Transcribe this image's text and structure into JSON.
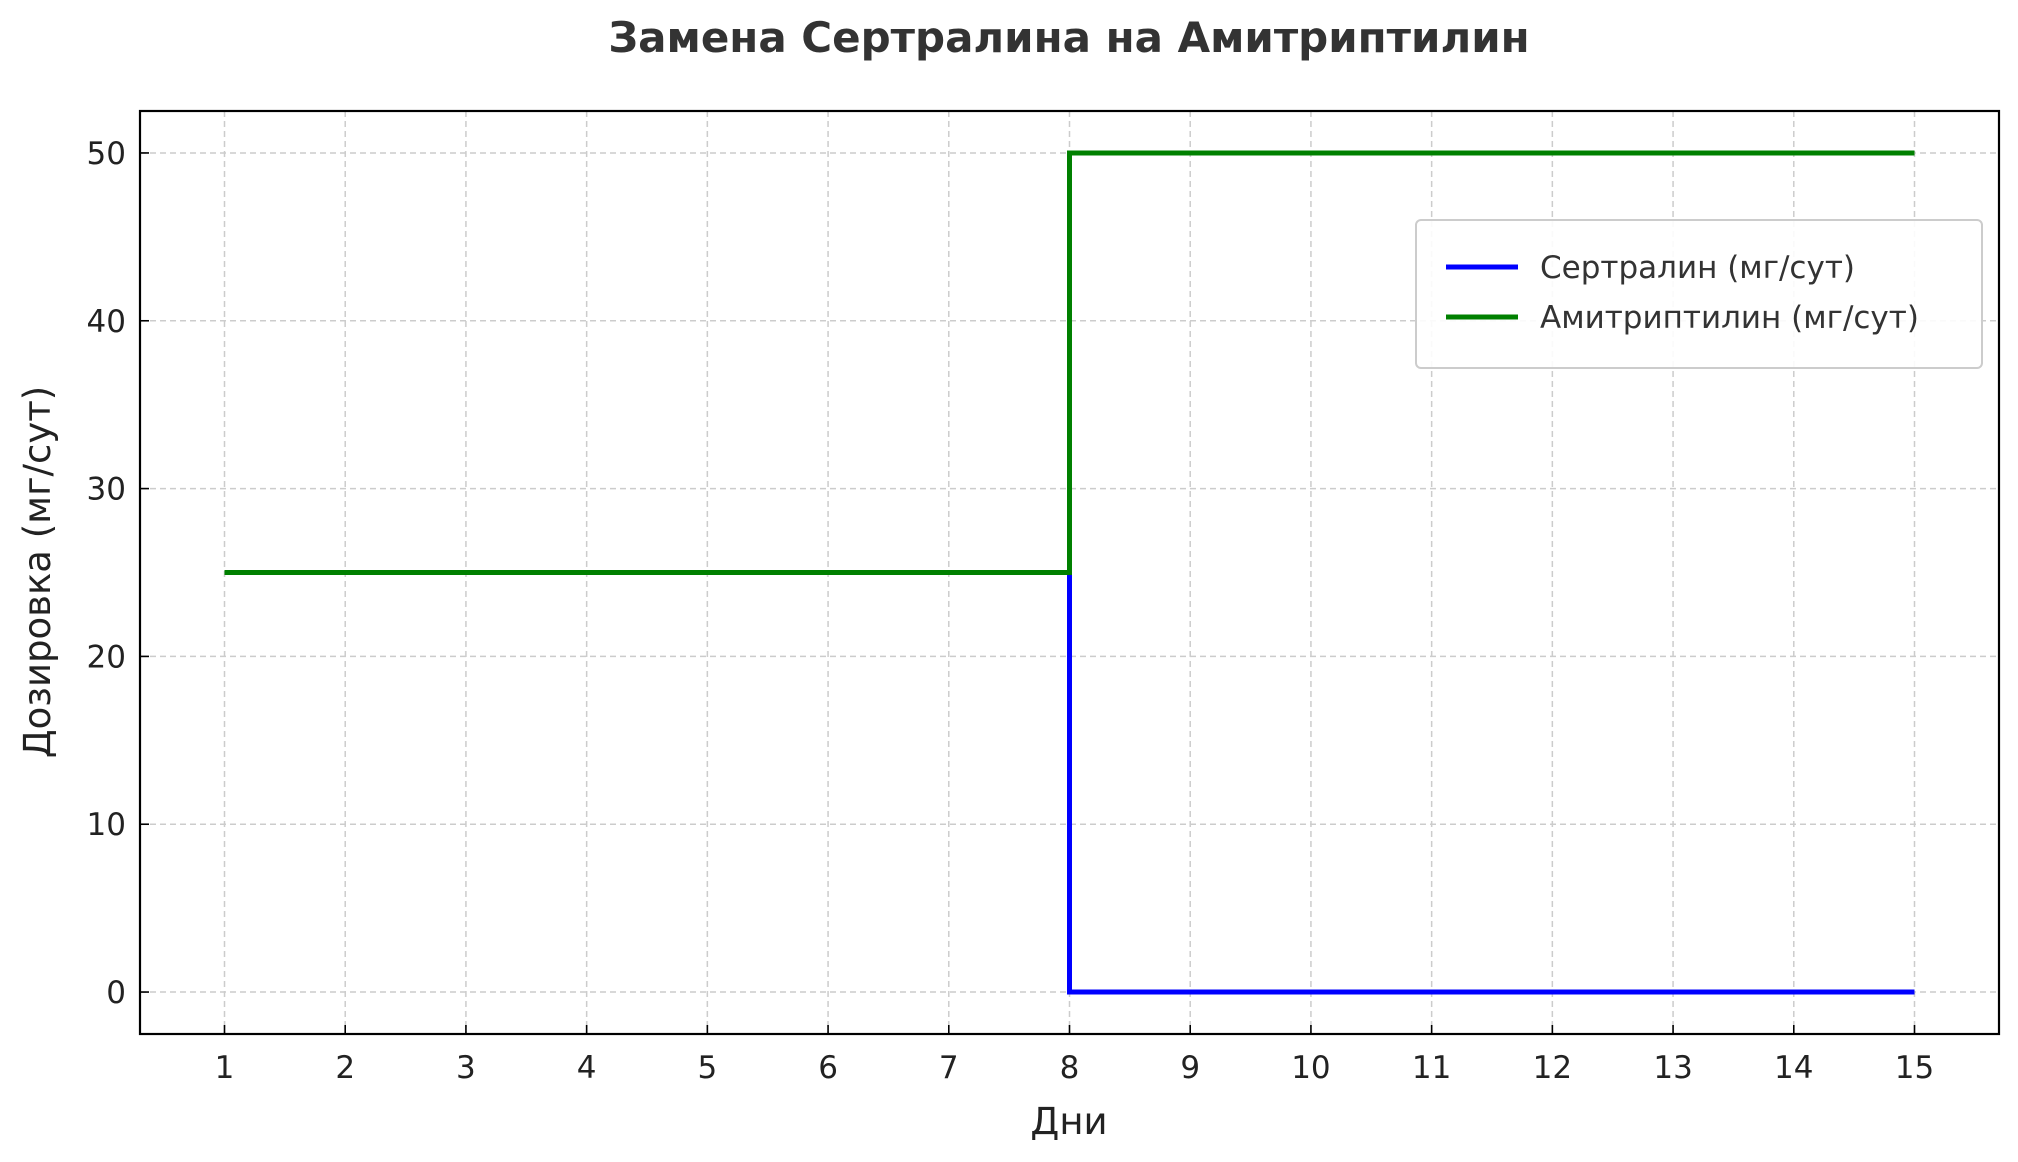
{
  "chart_data": {
    "type": "line",
    "title": "Замена Сертралина на Амитриптилин",
    "xlabel": "Дни",
    "ylabel": "Дозировка (мг/сут)",
    "x": [
      1,
      2,
      3,
      4,
      5,
      6,
      7,
      8,
      9,
      10,
      11,
      12,
      13,
      14,
      15
    ],
    "xlim": [
      0.3,
      15.7
    ],
    "ylim": [
      -2.5,
      52.5
    ],
    "xticks": [
      "1",
      "2",
      "3",
      "4",
      "5",
      "6",
      "7",
      "8",
      "9",
      "10",
      "11",
      "12",
      "13",
      "14",
      "15"
    ],
    "yticks": [
      "0",
      "10",
      "20",
      "30",
      "40",
      "50"
    ],
    "ytick_values": [
      0,
      10,
      20,
      30,
      40,
      50
    ],
    "grid": true,
    "step": "post",
    "legend_position": "upper-right",
    "series": [
      {
        "name": "Сертралин (мг/сут)",
        "color": "#0000ff",
        "values": [
          25,
          25,
          25,
          25,
          25,
          25,
          25,
          0,
          0,
          0,
          0,
          0,
          0,
          0,
          0
        ]
      },
      {
        "name": "Амитриптилин (мг/сут)",
        "color": "#008000",
        "values": [
          25,
          25,
          25,
          25,
          25,
          25,
          25,
          50,
          50,
          50,
          50,
          50,
          50,
          50,
          50
        ]
      }
    ]
  }
}
